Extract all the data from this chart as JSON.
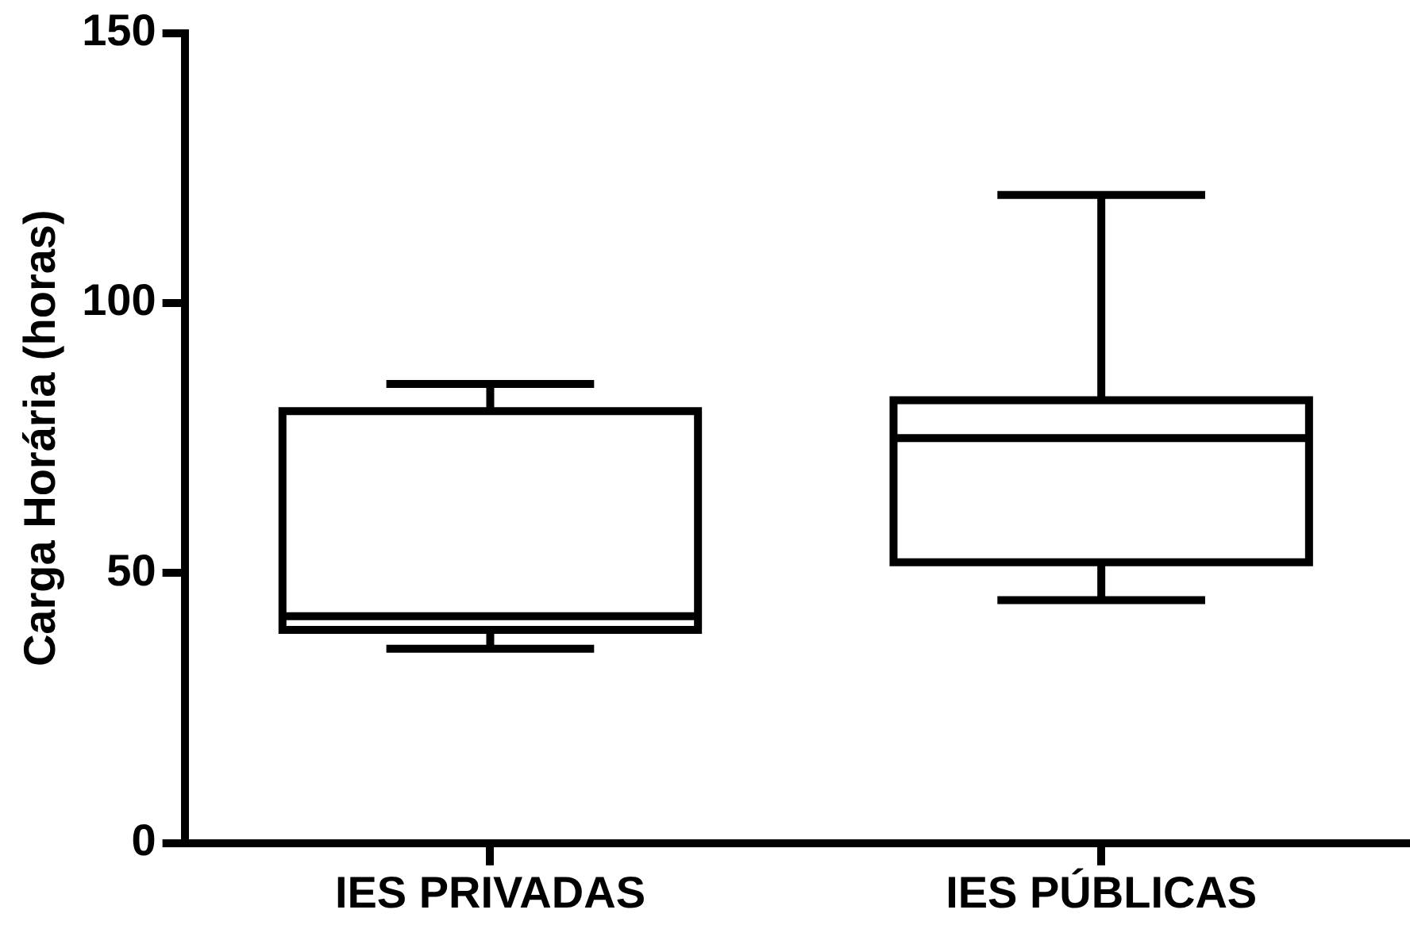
{
  "chart_data": {
    "type": "box",
    "ylabel": "Carga Horária (horas)",
    "categories": [
      "IES PRIVADAS",
      "IES PÚBLICAS"
    ],
    "boxes": [
      {
        "low": 36,
        "q1": 39.5,
        "median": 42,
        "q3": 80,
        "high": 85
      },
      {
        "low": 45,
        "q1": 52,
        "median": 75,
        "q3": 82,
        "high": 120
      }
    ],
    "color": "#000000",
    "ylim": [
      0,
      150
    ],
    "yticks": [
      0,
      50,
      100,
      150
    ],
    "grid": false,
    "legend": false
  }
}
